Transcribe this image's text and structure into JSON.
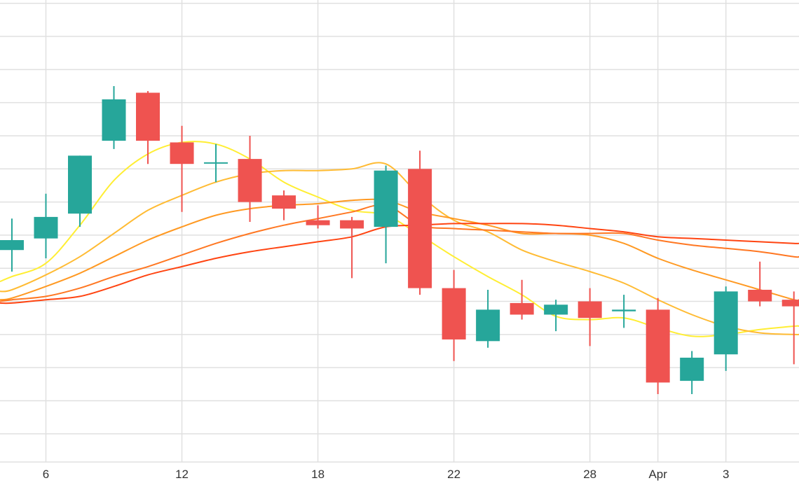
{
  "chart_data": {
    "type": "candlestick",
    "title": "",
    "xlabel": "",
    "ylabel": "",
    "grid": true,
    "legend": "none",
    "x_tick_labels": [
      {
        "x": 2,
        "label": "6"
      },
      {
        "x": 6,
        "label": "12"
      },
      {
        "x": 10,
        "label": "18"
      },
      {
        "x": 14,
        "label": "22"
      },
      {
        "x": 18,
        "label": "28"
      },
      {
        "x": 20,
        "label": "Apr"
      },
      {
        "x": 22,
        "label": "3"
      }
    ],
    "xlim": [
      0.65,
      24.15
    ],
    "ylim": [
      0.15,
      14.1
    ],
    "y_gridlines": [
      1,
      2,
      3,
      4,
      5,
      6,
      7,
      8,
      9,
      10,
      11,
      12,
      13,
      14
    ],
    "candles": [
      {
        "x": 1,
        "open": 6.55,
        "high": 7.5,
        "low": 5.9,
        "close": 6.85
      },
      {
        "x": 2,
        "open": 6.9,
        "high": 8.25,
        "low": 6.3,
        "close": 7.55
      },
      {
        "x": 3,
        "open": 7.65,
        "high": 9.4,
        "low": 7.25,
        "close": 9.4
      },
      {
        "x": 4,
        "open": 9.85,
        "high": 11.5,
        "low": 9.6,
        "close": 11.1
      },
      {
        "x": 5,
        "open": 11.3,
        "high": 11.35,
        "low": 9.15,
        "close": 9.85
      },
      {
        "x": 6,
        "open": 9.8,
        "high": 10.3,
        "low": 7.7,
        "close": 9.15
      },
      {
        "x": 7,
        "open": 9.2,
        "high": 9.75,
        "low": 8.6,
        "close": 9.2
      },
      {
        "x": 8,
        "open": 9.3,
        "high": 10.0,
        "low": 7.4,
        "close": 8.0
      },
      {
        "x": 9,
        "open": 8.2,
        "high": 8.35,
        "low": 7.45,
        "close": 7.8
      },
      {
        "x": 10,
        "open": 7.45,
        "high": 7.9,
        "low": 7.2,
        "close": 7.3
      },
      {
        "x": 11,
        "open": 7.45,
        "high": 7.55,
        "low": 5.7,
        "close": 7.2
      },
      {
        "x": 12,
        "open": 7.25,
        "high": 9.1,
        "low": 6.15,
        "close": 8.95
      },
      {
        "x": 13,
        "open": 9.0,
        "high": 9.55,
        "low": 5.2,
        "close": 5.4
      },
      {
        "x": 14,
        "open": 5.4,
        "high": 5.95,
        "low": 3.2,
        "close": 3.85
      },
      {
        "x": 15,
        "open": 3.8,
        "high": 5.35,
        "low": 3.6,
        "close": 4.75
      },
      {
        "x": 16,
        "open": 4.95,
        "high": 5.65,
        "low": 4.45,
        "close": 4.6
      },
      {
        "x": 17,
        "open": 4.6,
        "high": 5.05,
        "low": 4.1,
        "close": 4.9
      },
      {
        "x": 18,
        "open": 5.0,
        "high": 5.4,
        "low": 3.65,
        "close": 4.5
      },
      {
        "x": 19,
        "open": 4.7,
        "high": 5.2,
        "low": 4.2,
        "close": 4.75
      },
      {
        "x": 20,
        "open": 4.75,
        "high": 5.1,
        "low": 2.2,
        "close": 2.55
      },
      {
        "x": 21,
        "open": 2.6,
        "high": 3.5,
        "low": 2.2,
        "close": 3.3
      },
      {
        "x": 22,
        "open": 3.4,
        "high": 5.45,
        "low": 2.9,
        "close": 5.3
      },
      {
        "x": 23,
        "open": 5.35,
        "high": 6.2,
        "low": 4.85,
        "close": 5.0
      },
      {
        "x": 24,
        "open": 5.05,
        "high": 5.3,
        "low": 3.1,
        "close": 4.85
      }
    ],
    "series": [
      {
        "color": "#ffee33",
        "x": [
          0.65,
          1,
          2,
          3,
          4,
          5,
          6,
          7,
          8,
          9,
          10,
          11,
          12,
          13,
          14,
          15,
          16,
          17,
          18,
          19,
          20,
          21,
          22,
          23,
          24,
          24.15
        ],
        "values": [
          5.6,
          5.75,
          6.15,
          7.3,
          8.65,
          9.45,
          9.8,
          9.75,
          9.3,
          8.6,
          8.15,
          7.75,
          7.6,
          7.0,
          6.35,
          5.75,
          5.2,
          4.55,
          4.45,
          4.5,
          4.2,
          3.95,
          4.0,
          4.15,
          4.25,
          4.25
        ]
      },
      {
        "color": "#ffbb33",
        "x": [
          0.65,
          1,
          2,
          3,
          4,
          5,
          6,
          7,
          8,
          9,
          10,
          11,
          12,
          13,
          14,
          15,
          16,
          17,
          18,
          19,
          20,
          21,
          22,
          23,
          24,
          24.15
        ],
        "values": [
          5.3,
          5.35,
          5.8,
          6.35,
          7.05,
          7.75,
          8.2,
          8.6,
          8.85,
          8.95,
          8.95,
          9.0,
          9.15,
          8.2,
          7.45,
          7.1,
          6.55,
          6.2,
          5.9,
          5.55,
          5.05,
          4.6,
          4.25,
          4.05,
          4.0,
          4.0
        ]
      },
      {
        "color": "#ff9922",
        "x": [
          0.65,
          1,
          2,
          3,
          4,
          5,
          6,
          7,
          8,
          9,
          10,
          11,
          12,
          13,
          14,
          15,
          16,
          17,
          18,
          19,
          20,
          21,
          22,
          23,
          24,
          24.15
        ],
        "values": [
          5.05,
          5.1,
          5.45,
          5.85,
          6.35,
          6.85,
          7.25,
          7.6,
          7.8,
          7.9,
          7.95,
          8.05,
          8.05,
          7.7,
          7.5,
          7.3,
          7.05,
          7.05,
          7.0,
          6.75,
          6.3,
          5.95,
          5.65,
          5.35,
          5.05,
          5.05
        ]
      },
      {
        "color": "#ff7722",
        "x": [
          0.65,
          1,
          2,
          3,
          4,
          5,
          6,
          7,
          8,
          9,
          10,
          11,
          12,
          13,
          14,
          15,
          16,
          17,
          18,
          19,
          20,
          21,
          22,
          23,
          24,
          24.15
        ],
        "values": [
          5.0,
          5.05,
          5.15,
          5.4,
          5.75,
          6.05,
          6.4,
          6.75,
          7.05,
          7.3,
          7.5,
          7.7,
          7.9,
          7.3,
          7.2,
          7.15,
          7.1,
          7.05,
          7.05,
          7.05,
          6.85,
          6.7,
          6.6,
          6.5,
          6.35,
          6.35
        ]
      },
      {
        "color": "#ff4411",
        "x": [
          0.65,
          1,
          2,
          3,
          4,
          5,
          6,
          7,
          8,
          9,
          10,
          11,
          12,
          13,
          14,
          15,
          16,
          17,
          18,
          19,
          20,
          21,
          22,
          23,
          24,
          24.15
        ],
        "values": [
          4.95,
          4.95,
          5.05,
          5.15,
          5.45,
          5.8,
          6.05,
          6.3,
          6.5,
          6.65,
          6.8,
          6.95,
          7.25,
          7.3,
          7.35,
          7.35,
          7.35,
          7.3,
          7.2,
          7.1,
          6.95,
          6.9,
          6.85,
          6.8,
          6.75,
          6.75
        ]
      }
    ],
    "colors": {
      "up": "#26a69a",
      "down": "#ef5350",
      "grid": "#e0e0e0",
      "axis": "#333333"
    }
  }
}
